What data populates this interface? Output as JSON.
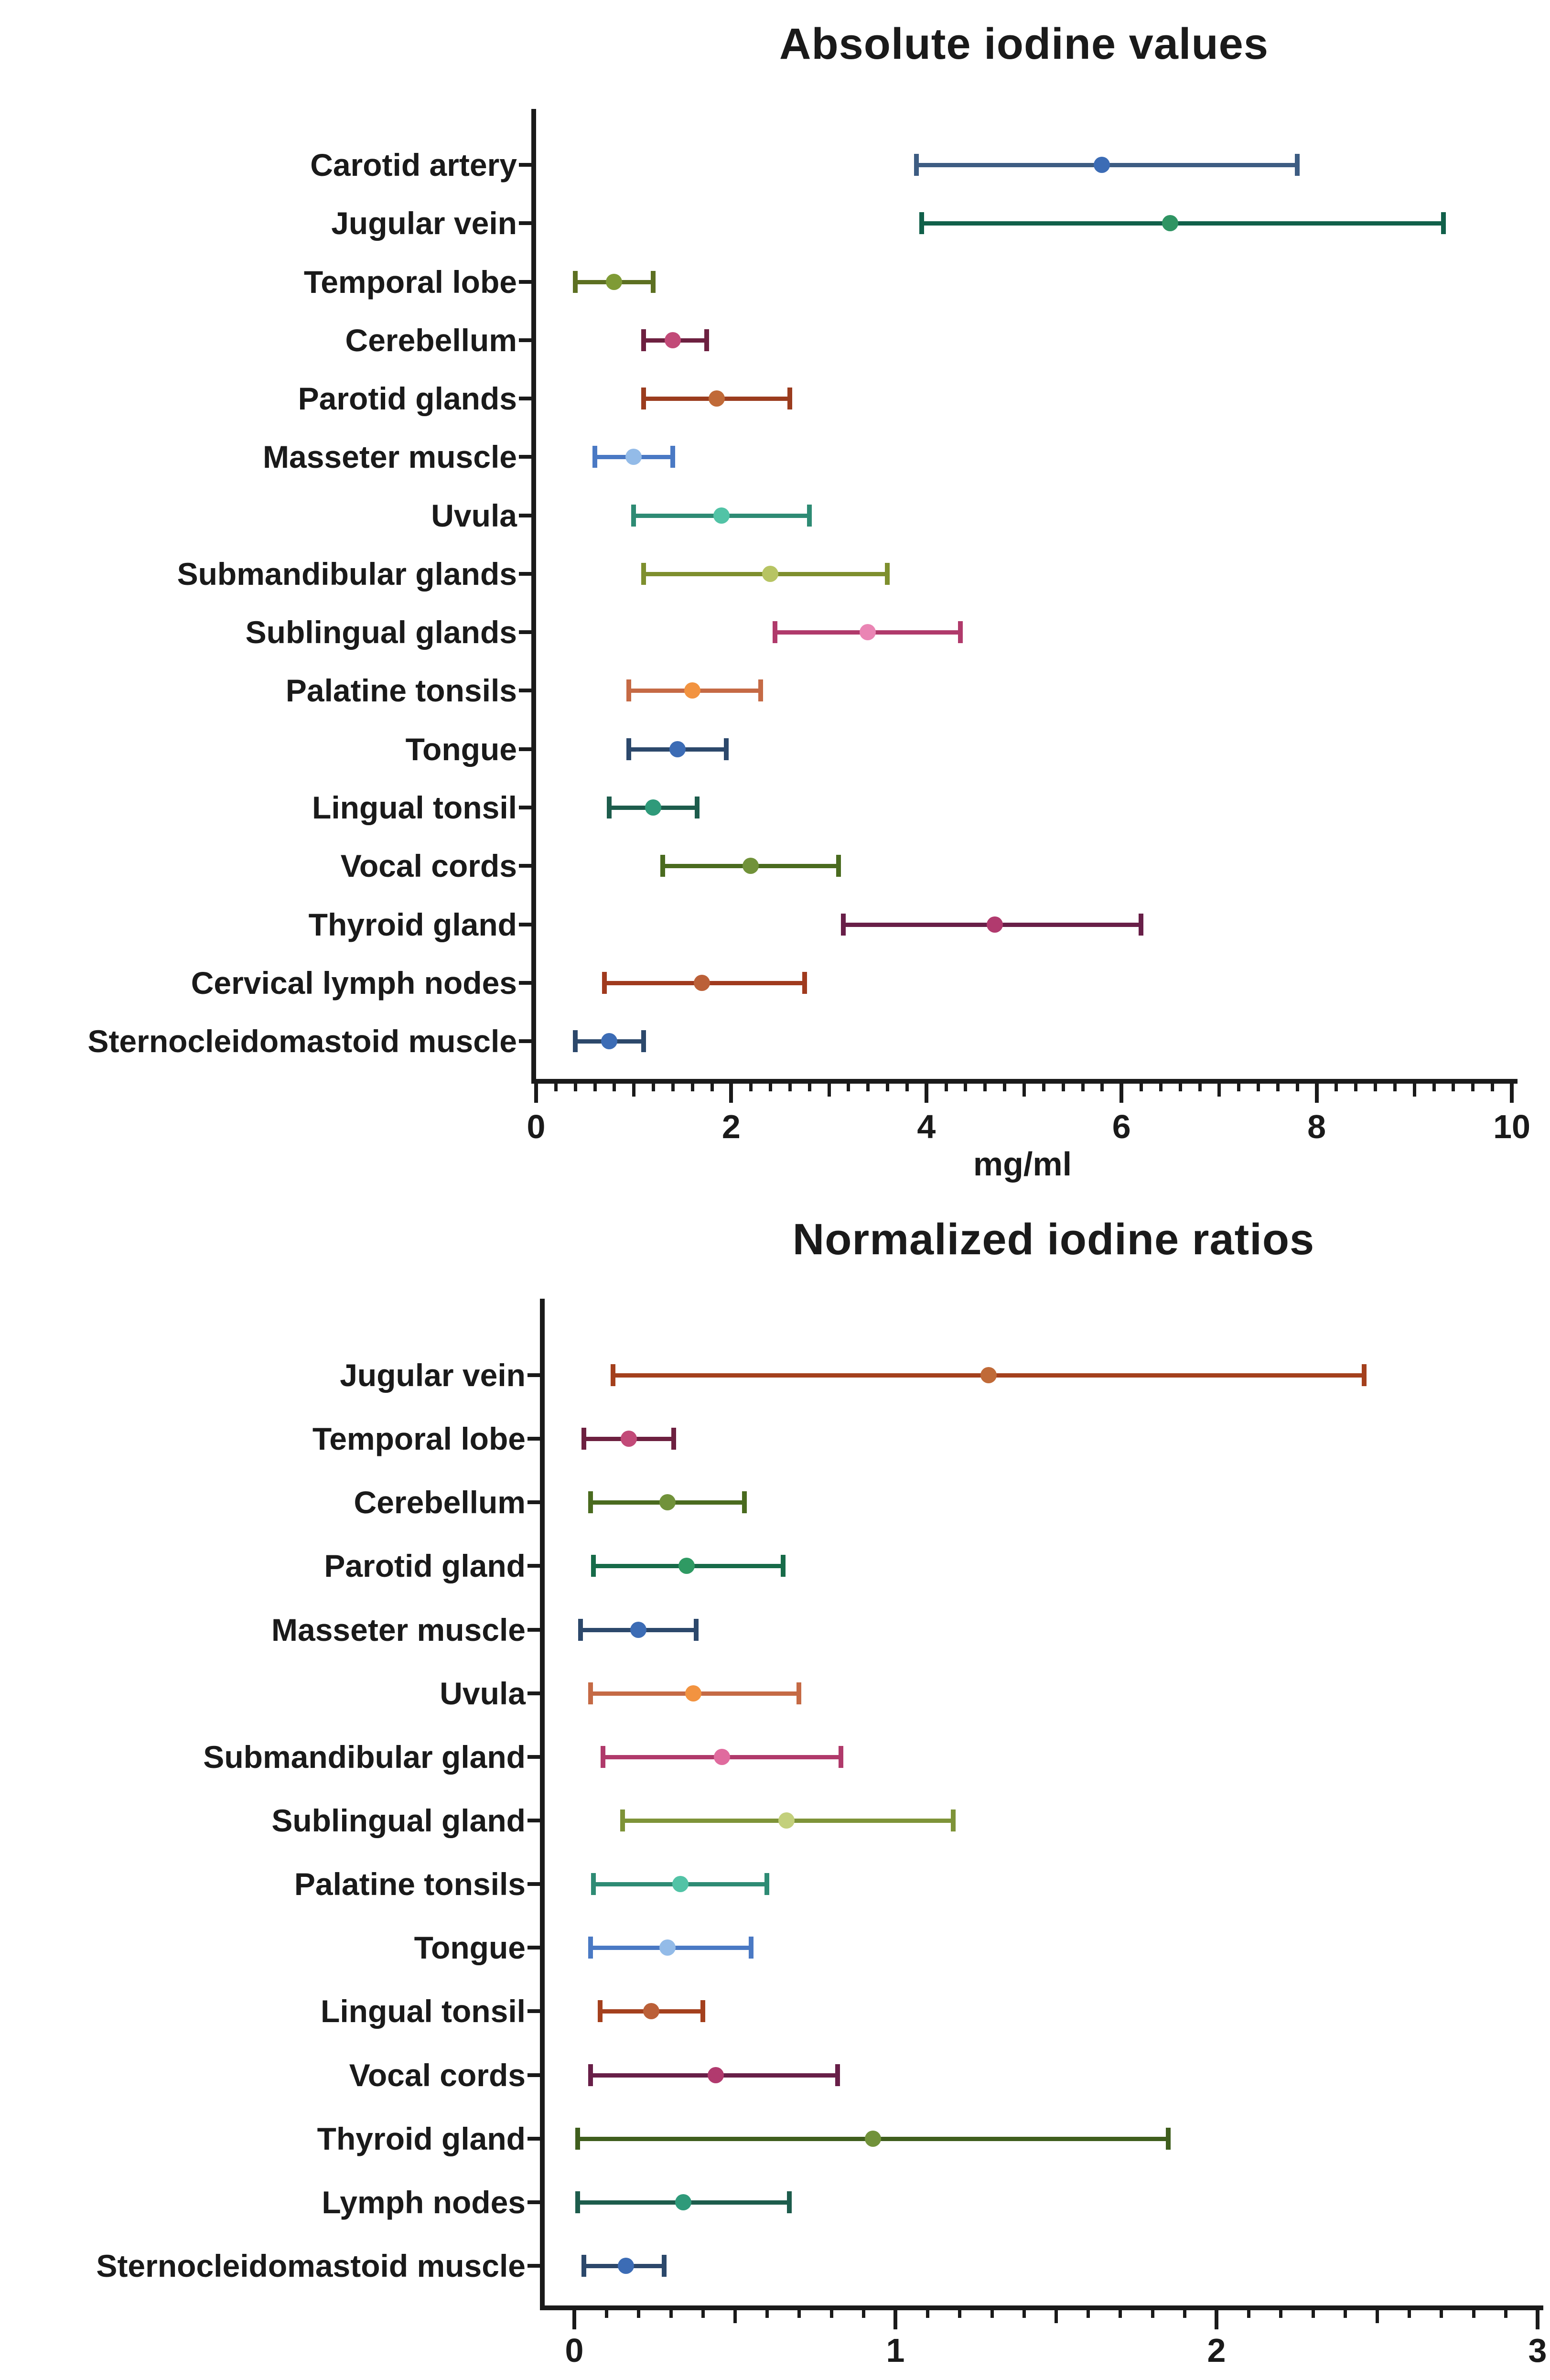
{
  "page": {
    "background": "#ffffff",
    "text_color": "#1a1a1a"
  },
  "chart_data": [
    {
      "type": "scatter",
      "style": "mean-dot-with-range-error-bars-horizontal",
      "title": "Absolute iodine values",
      "xlabel": "mg/ml",
      "ylabel": "",
      "xlim": [
        0,
        10
      ],
      "x_major_ticks": [
        0,
        2,
        4,
        6,
        8,
        10
      ],
      "x_minor_step": 0.2,
      "grid": false,
      "legend": false,
      "categories": [
        "Carotid artery",
        "Jugular vein",
        "Temporal lobe",
        "Cerebellum",
        "Parotid glands",
        "Masseter muscle",
        "Uvula",
        "Submandibular glands",
        "Sublingual glands",
        "Palatine tonsils",
        "Tongue",
        "Lingual tonsil",
        "Vocal cords",
        "Thyroid gland",
        "Cervical lymph nodes",
        "Sternocleidomastoid muscle"
      ],
      "series": [
        {
          "label": "Carotid artery",
          "low": 3.9,
          "mean": 5.8,
          "high": 7.8,
          "line_color": "#3d5c82",
          "dot_color": "#3c6cb5"
        },
        {
          "label": "Jugular vein",
          "low": 3.95,
          "mean": 6.5,
          "high": 9.3,
          "line_color": "#11604a",
          "dot_color": "#2f9463"
        },
        {
          "label": "Temporal lobe",
          "low": 0.4,
          "mean": 0.8,
          "high": 1.2,
          "line_color": "#5d7022",
          "dot_color": "#7f9b36"
        },
        {
          "label": "Cerebellum",
          "low": 1.1,
          "mean": 1.4,
          "high": 1.75,
          "line_color": "#6d2040",
          "dot_color": "#c24a78"
        },
        {
          "label": "Parotid glands",
          "low": 1.1,
          "mean": 1.85,
          "high": 2.6,
          "line_color": "#9b3c1e",
          "dot_color": "#c06a38"
        },
        {
          "label": "Masseter muscle",
          "low": 0.6,
          "mean": 1.0,
          "high": 1.4,
          "line_color": "#4a79c4",
          "dot_color": "#93bbe8"
        },
        {
          "label": "Uvula",
          "low": 1.0,
          "mean": 1.9,
          "high": 2.8,
          "line_color": "#2e8b74",
          "dot_color": "#52c3a6"
        },
        {
          "label": "Submandibular glands",
          "low": 1.1,
          "mean": 2.4,
          "high": 3.6,
          "line_color": "#7e8f2e",
          "dot_color": "#b7c463"
        },
        {
          "label": "Sublingual glands",
          "low": 2.45,
          "mean": 3.4,
          "high": 4.35,
          "line_color": "#b03a6b",
          "dot_color": "#ea85b4"
        },
        {
          "label": "Palatine tonsils",
          "low": 0.95,
          "mean": 1.6,
          "high": 2.3,
          "line_color": "#c56a45",
          "dot_color": "#f29340"
        },
        {
          "label": "Tongue",
          "low": 0.95,
          "mean": 1.45,
          "high": 1.95,
          "line_color": "#2c486b",
          "dot_color": "#3c6cb5"
        },
        {
          "label": "Lingual tonsil",
          "low": 0.75,
          "mean": 1.2,
          "high": 1.65,
          "line_color": "#1d5c4c",
          "dot_color": "#2f9a7a"
        },
        {
          "label": "Vocal cords",
          "low": 1.3,
          "mean": 2.2,
          "high": 3.1,
          "line_color": "#4a6b1f",
          "dot_color": "#71923a"
        },
        {
          "label": "Thyroid gland",
          "low": 3.15,
          "mean": 4.7,
          "high": 6.2,
          "line_color": "#681f48",
          "dot_color": "#b13a6e"
        },
        {
          "label": "Cervical lymph nodes",
          "low": 0.7,
          "mean": 1.7,
          "high": 2.75,
          "line_color": "#a03a1e",
          "dot_color": "#bb6038"
        },
        {
          "label": "Sternocleidomastoid muscle",
          "low": 0.4,
          "mean": 0.75,
          "high": 1.1,
          "line_color": "#2c486b",
          "dot_color": "#3c6cb5"
        }
      ]
    },
    {
      "type": "scatter",
      "style": "mean-dot-with-range-error-bars-horizontal",
      "title": "Normalized iodine ratios",
      "xlabel": "",
      "ylabel": "",
      "xlim": [
        0,
        3
      ],
      "x_major_ticks": [
        0,
        1,
        2,
        3
      ],
      "x_minor_step": 0.1,
      "grid": false,
      "legend": false,
      "categories": [
        "Jugular vein",
        "Temporal lobe",
        "Cerebellum",
        "Parotid gland",
        "Masseter muscle",
        "Uvula",
        "Submandibular gland",
        "Sublingual gland",
        "Palatine tonsils",
        "Tongue",
        "Lingual tonsil",
        "Vocal cords",
        "Thyroid gland",
        "Lymph nodes",
        "Sternocleidomastoid muscle"
      ],
      "series": [
        {
          "label": "Jugular vein",
          "low": 0.12,
          "mean": 1.29,
          "high": 2.46,
          "line_color": "#a4401d",
          "dot_color": "#c06a38"
        },
        {
          "label": "Temporal lobe",
          "low": 0.03,
          "mean": 0.17,
          "high": 0.31,
          "line_color": "#6d2040",
          "dot_color": "#c24a78"
        },
        {
          "label": "Cerebellum",
          "low": 0.05,
          "mean": 0.29,
          "high": 0.53,
          "line_color": "#4a6b1f",
          "dot_color": "#71923a"
        },
        {
          "label": "Parotid gland",
          "low": 0.06,
          "mean": 0.35,
          "high": 0.65,
          "line_color": "#176b49",
          "dot_color": "#2f9a63"
        },
        {
          "label": "Masseter muscle",
          "low": 0.02,
          "mean": 0.2,
          "high": 0.38,
          "line_color": "#2c486b",
          "dot_color": "#3c6cb5"
        },
        {
          "label": "Uvula",
          "low": 0.05,
          "mean": 0.37,
          "high": 0.7,
          "line_color": "#c56a45",
          "dot_color": "#f29340"
        },
        {
          "label": "Submandibular gland",
          "low": 0.09,
          "mean": 0.46,
          "high": 0.83,
          "line_color": "#b03a6b",
          "dot_color": "#e06b9e"
        },
        {
          "label": "Sublingual gland",
          "low": 0.15,
          "mean": 0.66,
          "high": 1.18,
          "line_color": "#7e9338",
          "dot_color": "#c3d07c"
        },
        {
          "label": "Palatine tonsils",
          "low": 0.06,
          "mean": 0.33,
          "high": 0.6,
          "line_color": "#2e8b74",
          "dot_color": "#52c3a6"
        },
        {
          "label": "Tongue",
          "low": 0.05,
          "mean": 0.29,
          "high": 0.55,
          "line_color": "#4a79c4",
          "dot_color": "#93bbe8"
        },
        {
          "label": "Lingual tonsil",
          "low": 0.08,
          "mean": 0.24,
          "high": 0.4,
          "line_color": "#a4401d",
          "dot_color": "#bb6038"
        },
        {
          "label": "Vocal cords",
          "low": 0.05,
          "mean": 0.44,
          "high": 0.82,
          "line_color": "#681f48",
          "dot_color": "#b13a6e"
        },
        {
          "label": "Thyroid gland",
          "low": 0.01,
          "mean": 0.93,
          "high": 1.85,
          "line_color": "#3f5e1d",
          "dot_color": "#71923a"
        },
        {
          "label": "Lymph nodes",
          "low": 0.01,
          "mean": 0.34,
          "high": 0.67,
          "line_color": "#1d5c4c",
          "dot_color": "#2f9a7a"
        },
        {
          "label": "Sternocleidomastoid muscle",
          "low": 0.03,
          "mean": 0.16,
          "high": 0.28,
          "line_color": "#2c486b",
          "dot_color": "#3c6cb5"
        }
      ]
    }
  ]
}
